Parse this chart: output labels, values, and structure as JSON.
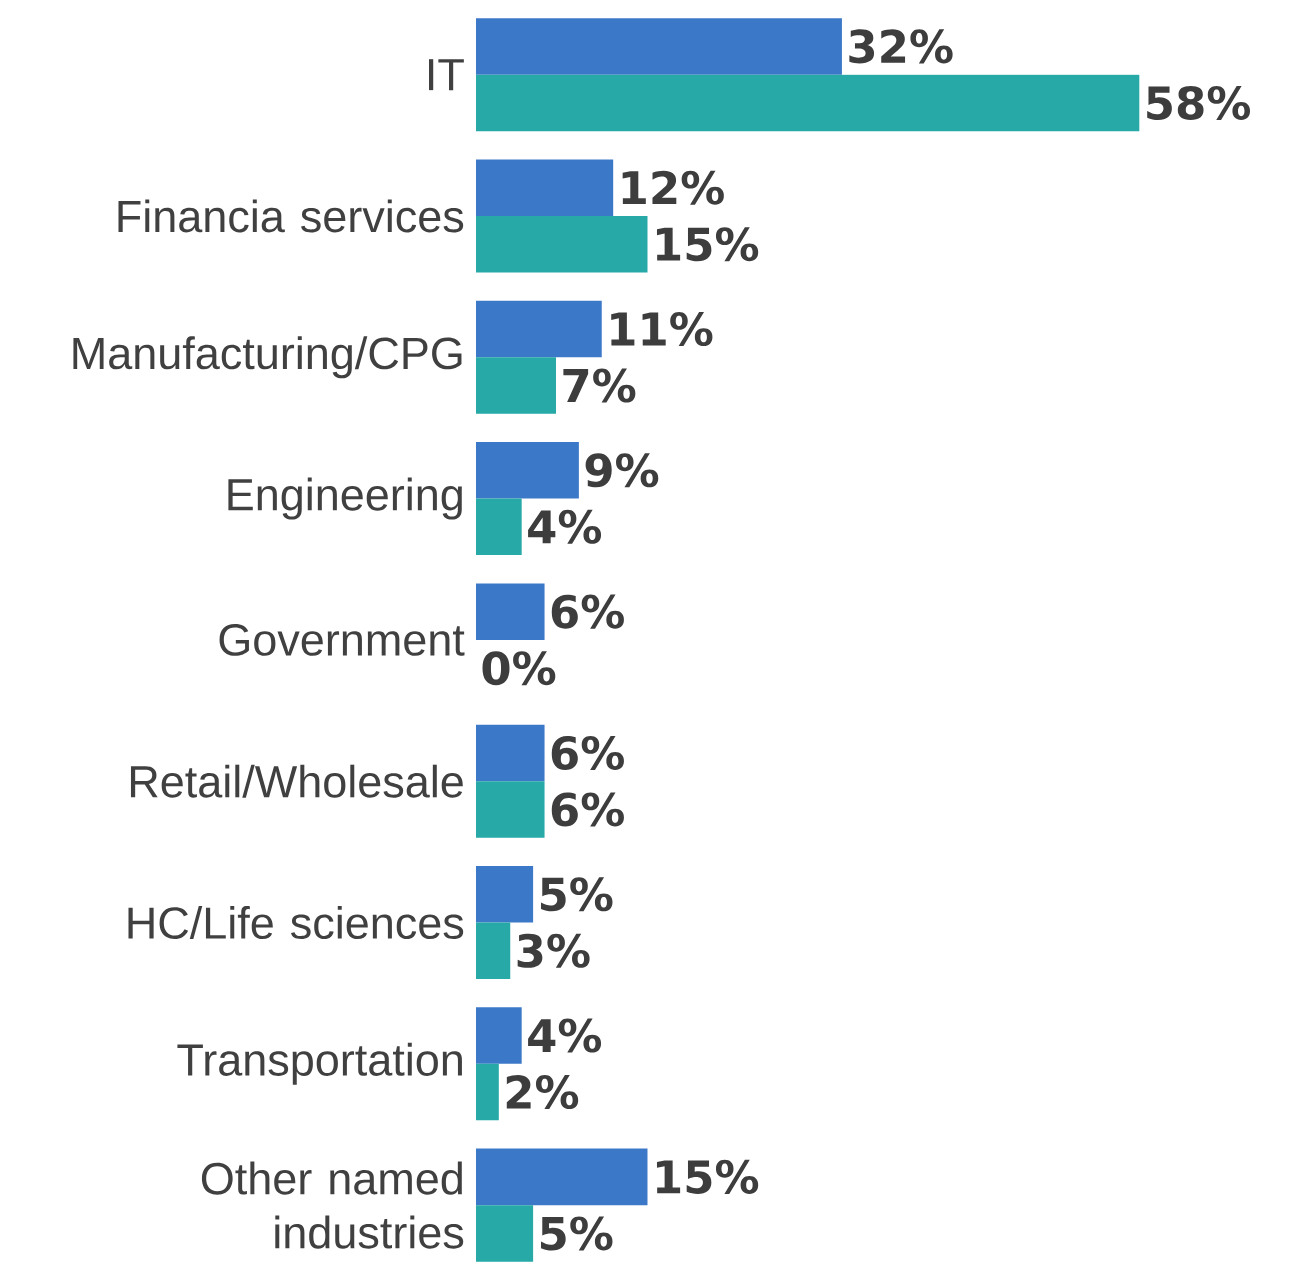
{
  "chart_data": {
    "type": "bar",
    "orientation": "horizontal",
    "categories": [
      "IT",
      "Financia services",
      "Manufacturing/CPG",
      "Engineering",
      "Government",
      "Retail/Wholesale",
      "HC/Life sciences",
      "Transportation",
      "Other named industries"
    ],
    "series": [
      {
        "color": "#3c78c8",
        "values": [
          32,
          12,
          11,
          9,
          6,
          6,
          5,
          4,
          15
        ],
        "value_labels": [
          "32%",
          "12%",
          "11%",
          "9%",
          "6%",
          "6%",
          "5%",
          "4%",
          "15%"
        ]
      },
      {
        "color": "#27a9a8",
        "values": [
          58,
          15,
          7,
          4,
          0,
          6,
          3,
          2,
          5
        ],
        "value_labels": [
          "58%",
          "15%",
          "7%",
          "4%",
          "0%",
          "6%",
          "3%",
          "2%",
          "5%"
        ]
      }
    ],
    "tick_labels": "y"
  }
}
